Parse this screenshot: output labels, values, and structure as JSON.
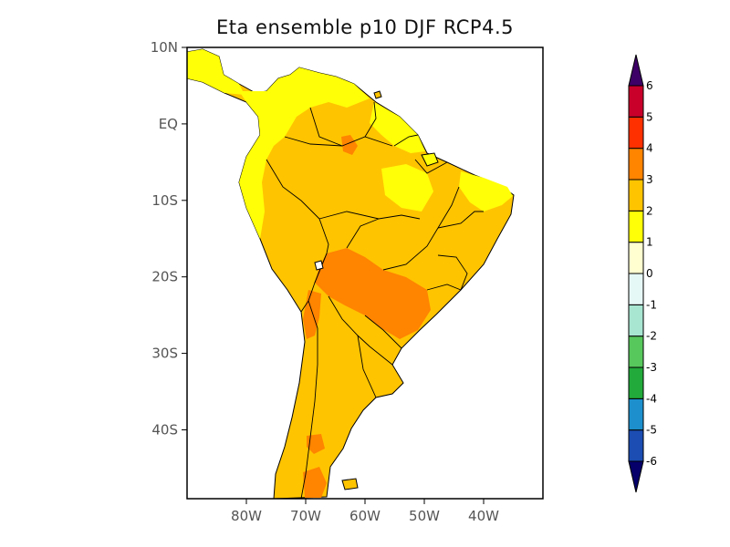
{
  "title": "Eta ensemble p10 DJF RCP4.5",
  "map": {
    "region": "South America",
    "projection": "latitude-longitude",
    "lon_range": [
      -90,
      -30
    ],
    "lat_range": [
      -49,
      10
    ],
    "lat_ticks": [
      {
        "value": 10,
        "label": "10N"
      },
      {
        "value": 0,
        "label": "EQ"
      },
      {
        "value": -10,
        "label": "10S"
      },
      {
        "value": -20,
        "label": "20S"
      },
      {
        "value": -30,
        "label": "30S"
      },
      {
        "value": -40,
        "label": "40S"
      }
    ],
    "lon_ticks": [
      {
        "value": -80,
        "label": "80W"
      },
      {
        "value": -70,
        "label": "70W"
      },
      {
        "value": -60,
        "label": "60W"
      },
      {
        "value": -50,
        "label": "50W"
      },
      {
        "value": -40,
        "label": "40W"
      }
    ],
    "ocean_color": "#ffffff",
    "dominant_class": "2 to 3",
    "features": [
      {
        "area": "northern coast and Andes",
        "class": "1 to 2"
      },
      {
        "area": "central Amazon and Brazil",
        "class": "2 to 3"
      },
      {
        "area": "south-central highlands (Paraguay / Mato Grosso)",
        "class": "3 to 4"
      },
      {
        "area": "southern Andes patches",
        "class": "3 to 4"
      }
    ]
  },
  "colorbar": {
    "levels": [
      -6,
      -5,
      -4,
      -3,
      -2,
      -1,
      0,
      1,
      2,
      3,
      4,
      5,
      6
    ],
    "labels": [
      "-6",
      "-5",
      "-4",
      "-3",
      "-2",
      "-1",
      "0",
      "1",
      "2",
      "3",
      "4",
      "5",
      "6"
    ],
    "colors": [
      "#1b4db3",
      "#1c8fcc",
      "#22aa3a",
      "#57c85c",
      "#a8e6d2",
      "#e6f8f6",
      "#fffed0",
      "#ffff08",
      "#ffc400",
      "#ff8400",
      "#ff3000",
      "#c8002a"
    ],
    "lower_extension_color": "#05006a",
    "upper_extension_color": "#3d0066"
  }
}
